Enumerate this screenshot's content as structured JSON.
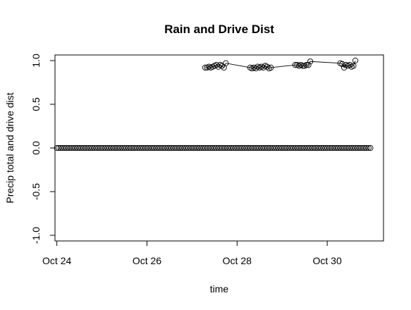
{
  "chart_data": {
    "type": "scatter",
    "title": "Rain and Drive Dist",
    "xlabel": "time",
    "ylabel": "Precip total and drive dist",
    "xlim": [
      "2023-10-23 23:00",
      "2023-10-31 06:00"
    ],
    "ylim": [
      -1.0,
      1.0
    ],
    "x_ticks": [
      {
        "date": "2023-10-24",
        "label": "Oct 24"
      },
      {
        "date": "2023-10-26",
        "label": "Oct 26"
      },
      {
        "date": "2023-10-28",
        "label": "Oct 28"
      },
      {
        "date": "2023-10-30",
        "label": "Oct 30"
      }
    ],
    "y_ticks": [
      {
        "value": -1.0,
        "label": "-1.0"
      },
      {
        "value": -0.5,
        "label": "-0.5"
      },
      {
        "value": 0.0,
        "label": "0.0"
      },
      {
        "value": 0.5,
        "label": "0.5"
      },
      {
        "value": 1.0,
        "label": "1.0"
      }
    ],
    "grid": false,
    "series": [
      {
        "marker": "open-circle",
        "connected": false,
        "start": "2023-10-24 00:00",
        "end": "2023-10-30 23:00",
        "step_hours": 1,
        "value": 0
      },
      {
        "marker": "open-circle",
        "connected": true,
        "points": [
          [
            "2023-10-27 07:00",
            0.92
          ],
          [
            "2023-10-27 08:00",
            0.92
          ],
          [
            "2023-10-27 09:00",
            0.93
          ],
          [
            "2023-10-27 10:00",
            0.92
          ],
          [
            "2023-10-27 11:00",
            0.93
          ],
          [
            "2023-10-27 12:00",
            0.94
          ],
          [
            "2023-10-27 13:00",
            0.95
          ],
          [
            "2023-10-27 14:00",
            0.93
          ],
          [
            "2023-10-27 15:00",
            0.95
          ],
          [
            "2023-10-27 16:00",
            0.94
          ],
          [
            "2023-10-27 17:00",
            0.92
          ],
          [
            "2023-10-27 18:00",
            0.97
          ],
          [
            "2023-10-28 07:00",
            0.92
          ],
          [
            "2023-10-28 08:00",
            0.91
          ],
          [
            "2023-10-28 09:00",
            0.92
          ],
          [
            "2023-10-28 10:00",
            0.91
          ],
          [
            "2023-10-28 11:00",
            0.93
          ],
          [
            "2023-10-28 12:00",
            0.92
          ],
          [
            "2023-10-28 13:00",
            0.93
          ],
          [
            "2023-10-28 14:00",
            0.92
          ],
          [
            "2023-10-28 15:00",
            0.94
          ],
          [
            "2023-10-28 16:00",
            0.93
          ],
          [
            "2023-10-28 17:00",
            0.91
          ],
          [
            "2023-10-28 18:00",
            0.92
          ],
          [
            "2023-10-29 07:00",
            0.95
          ],
          [
            "2023-10-29 08:00",
            0.95
          ],
          [
            "2023-10-29 09:00",
            0.94
          ],
          [
            "2023-10-29 10:00",
            0.95
          ],
          [
            "2023-10-29 11:00",
            0.94
          ],
          [
            "2023-10-29 12:00",
            0.94
          ],
          [
            "2023-10-29 13:00",
            0.95
          ],
          [
            "2023-10-29 14:00",
            0.95
          ],
          [
            "2023-10-29 15:00",
            0.99
          ],
          [
            "2023-10-30 07:00",
            0.97
          ],
          [
            "2023-10-30 08:00",
            0.96
          ],
          [
            "2023-10-30 09:00",
            0.92
          ],
          [
            "2023-10-30 10:00",
            0.95
          ],
          [
            "2023-10-30 11:00",
            0.94
          ],
          [
            "2023-10-30 12:00",
            0.95
          ],
          [
            "2023-10-30 13:00",
            0.93
          ],
          [
            "2023-10-30 14:00",
            0.94
          ],
          [
            "2023-10-30 15:00",
            1.0
          ]
        ]
      }
    ]
  }
}
